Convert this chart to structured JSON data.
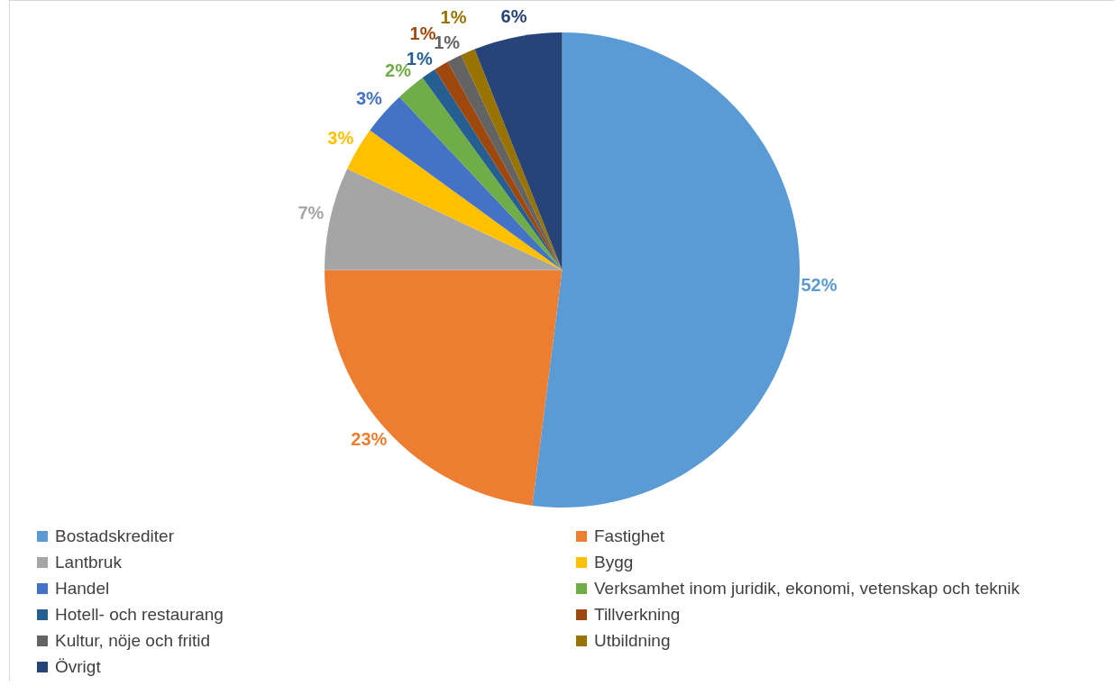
{
  "chart_data": {
    "type": "pie",
    "categories": [
      "Bostadskrediter",
      "Fastighet",
      "Lantbruk",
      "Bygg",
      "Handel",
      "Verksamhet inom juridik, ekonomi, vetenskap och teknik",
      "Hotell- och restaurang",
      "Tillverkning",
      "Kultur, nöje och fritid",
      "Utbildning",
      "Övrigt"
    ],
    "values": [
      52,
      23,
      7,
      3,
      3,
      2,
      1,
      1,
      1,
      1,
      6
    ],
    "colors": [
      "#5b9bd5",
      "#ed7d31",
      "#a5a5a5",
      "#ffc000",
      "#4472c4",
      "#70ad47",
      "#255e91",
      "#9e480e",
      "#636363",
      "#997300",
      "#264478"
    ],
    "value_labels": [
      "52%",
      "23%",
      "7%",
      "3%",
      "3%",
      "2%",
      "1%",
      "1%",
      "1%",
      "1%",
      "6%"
    ],
    "legend": "bottom"
  }
}
